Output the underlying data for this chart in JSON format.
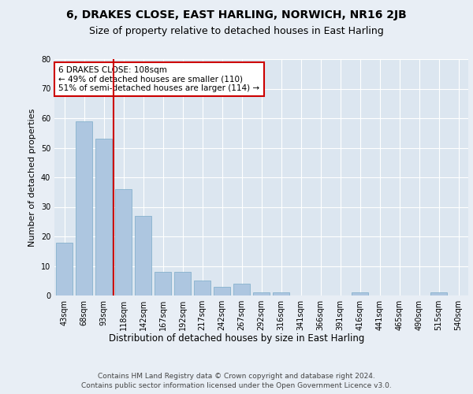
{
  "title": "6, DRAKES CLOSE, EAST HARLING, NORWICH, NR16 2JB",
  "subtitle": "Size of property relative to detached houses in East Harling",
  "xlabel": "Distribution of detached houses by size in East Harling",
  "ylabel": "Number of detached properties",
  "categories": [
    "43sqm",
    "68sqm",
    "93sqm",
    "118sqm",
    "142sqm",
    "167sqm",
    "192sqm",
    "217sqm",
    "242sqm",
    "267sqm",
    "292sqm",
    "316sqm",
    "341sqm",
    "366sqm",
    "391sqm",
    "416sqm",
    "441sqm",
    "465sqm",
    "490sqm",
    "515sqm",
    "540sqm"
  ],
  "values": [
    18,
    59,
    53,
    36,
    27,
    8,
    8,
    5,
    3,
    4,
    1,
    1,
    0,
    0,
    0,
    1,
    0,
    0,
    0,
    1,
    0
  ],
  "bar_color": "#adc6e0",
  "bar_edge_color": "#7aaac8",
  "vline_x": 2.5,
  "vline_color": "#cc0000",
  "annotation_text": "6 DRAKES CLOSE: 108sqm\n← 49% of detached houses are smaller (110)\n51% of semi-detached houses are larger (114) →",
  "annotation_box_color": "#ffffff",
  "annotation_box_edge": "#cc0000",
  "ylim": [
    0,
    80
  ],
  "yticks": [
    0,
    10,
    20,
    30,
    40,
    50,
    60,
    70,
    80
  ],
  "background_color": "#e8eef5",
  "plot_bg_color": "#dce6f0",
  "grid_color": "#ffffff",
  "footnote": "Contains HM Land Registry data © Crown copyright and database right 2024.\nContains public sector information licensed under the Open Government Licence v3.0.",
  "title_fontsize": 10,
  "subtitle_fontsize": 9,
  "xlabel_fontsize": 8.5,
  "ylabel_fontsize": 8,
  "tick_fontsize": 7,
  "annotation_fontsize": 7.5,
  "footnote_fontsize": 6.5
}
